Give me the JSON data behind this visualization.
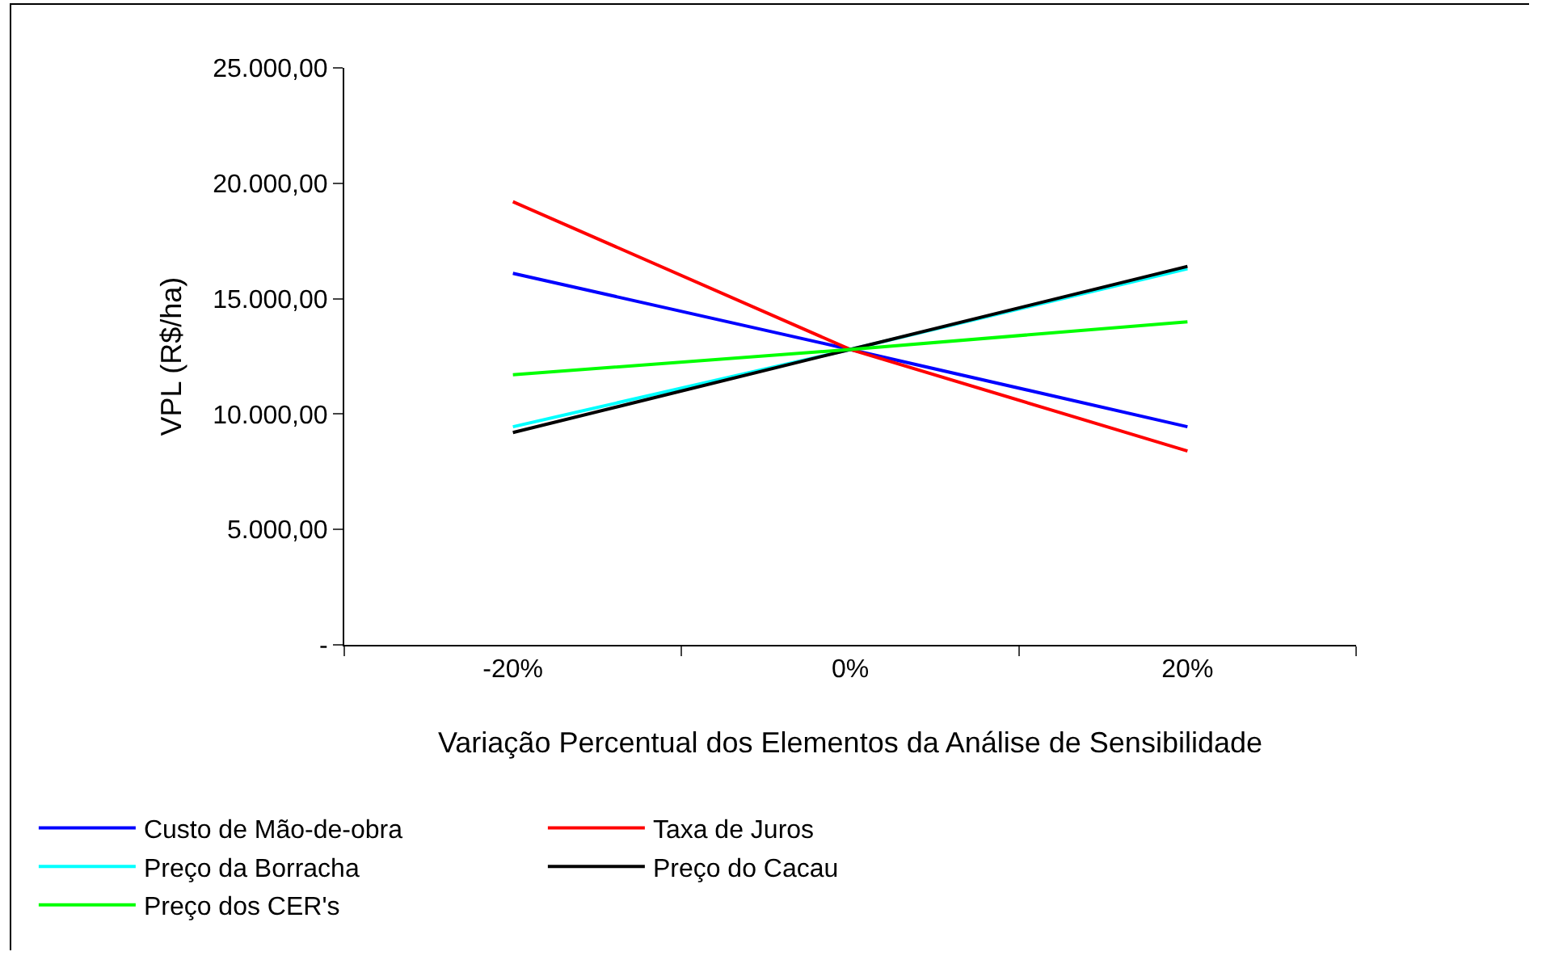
{
  "chart_data": {
    "type": "line",
    "xlabel": "Variação Percentual dos Elementos da Análise de Sensibilidade",
    "ylabel": "VPL (R$/ha)",
    "categories": [
      "-20%",
      "0%",
      "20%"
    ],
    "series": [
      {
        "name": "Custo de Mão-de-obra",
        "color": "#0000ff",
        "values": [
          16100,
          12800,
          9450
        ]
      },
      {
        "name": "Taxa de Juros",
        "color": "#ff0000",
        "values": [
          19200,
          12800,
          8400
        ]
      },
      {
        "name": "Preço da Borracha",
        "color": "#00ffff",
        "values": [
          9450,
          12800,
          16300
        ]
      },
      {
        "name": "Preço do Cacau",
        "color": "#000000",
        "values": [
          9200,
          12800,
          16400
        ]
      },
      {
        "name": "Preço dos CER's",
        "color": "#00ff00",
        "values": [
          11700,
          12800,
          14000
        ]
      }
    ],
    "ylim": [
      0,
      25000
    ],
    "yticks": [
      {
        "value": 0,
        "label": "-"
      },
      {
        "value": 5000,
        "label": "5.000,00"
      },
      {
        "value": 10000,
        "label": "10.000,00"
      },
      {
        "value": 15000,
        "label": "15.000,00"
      },
      {
        "value": 20000,
        "label": "20.000,00"
      },
      {
        "value": 25000,
        "label": "25.000,00"
      }
    ],
    "grid": false,
    "legend": "bottom",
    "marker": "none",
    "line_style": "solid"
  }
}
